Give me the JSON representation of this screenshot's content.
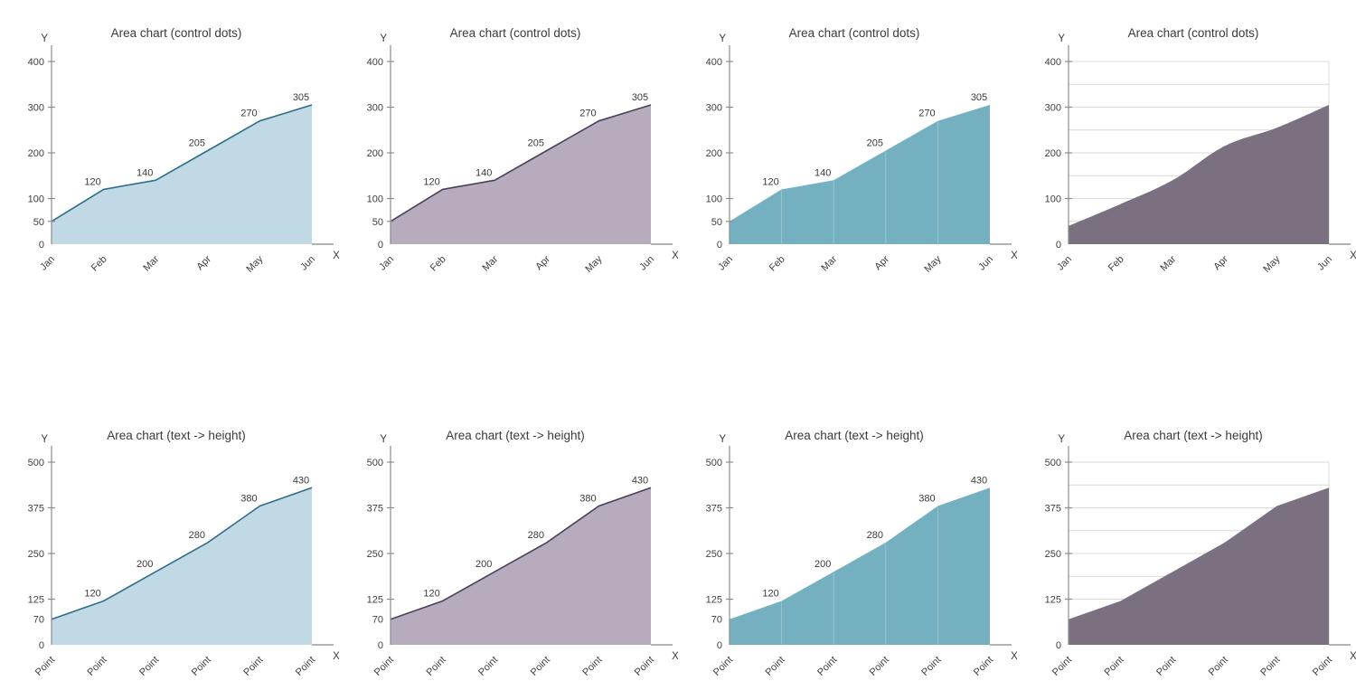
{
  "palette": {
    "axis_color": "#8c8c8c",
    "x_ext_color": "#9a9a9a",
    "text_color": "#3a3a3a",
    "tick_text_color": "#404040",
    "background": "#ffffff"
  },
  "chart_data": [
    {
      "type": "area",
      "title": "Area chart (control dots)",
      "y_axis_label": "Y",
      "x_axis_label": "X",
      "x": [
        "Jan",
        "Feb",
        "Mar",
        "Apr",
        "May",
        "Jun"
      ],
      "values": [
        50,
        120,
        140,
        205,
        270,
        305
      ],
      "point_labels": [
        "",
        "120",
        "140",
        "205",
        "270",
        "305"
      ],
      "y_ticks": [
        [
          0,
          "0",
          0
        ],
        [
          50,
          "50",
          1
        ],
        [
          100,
          "100",
          1
        ],
        [
          200,
          "200",
          1
        ],
        [
          300,
          "300",
          1
        ],
        [
          400,
          "400",
          1
        ]
      ],
      "ylim": [
        0,
        430
      ],
      "grid": "none",
      "grid_values": [],
      "grid_color": "",
      "smooth": false,
      "fill": "#c0d9e4",
      "stroke": "#2e6e89",
      "legend": "none"
    },
    {
      "type": "area",
      "title": "Area chart (control dots)",
      "y_axis_label": "Y",
      "x_axis_label": "X",
      "x": [
        "Jan",
        "Feb",
        "Mar",
        "Apr",
        "May",
        "Jun"
      ],
      "values": [
        50,
        120,
        140,
        205,
        270,
        305
      ],
      "point_labels": [
        "",
        "120",
        "140",
        "205",
        "270",
        "305"
      ],
      "y_ticks": [
        [
          0,
          "0",
          0
        ],
        [
          50,
          "50",
          1
        ],
        [
          100,
          "100",
          1
        ],
        [
          200,
          "200",
          1
        ],
        [
          300,
          "300",
          1
        ],
        [
          400,
          "400",
          1
        ]
      ],
      "ylim": [
        0,
        430
      ],
      "grid": "none",
      "grid_values": [],
      "grid_color": "",
      "smooth": false,
      "fill": "#b6acbd",
      "stroke": "#4a4156",
      "legend": "none"
    },
    {
      "type": "area",
      "title": "Area chart (control dots)",
      "y_axis_label": "Y",
      "x_axis_label": "X",
      "x": [
        "Jan",
        "Feb",
        "Mar",
        "Apr",
        "May",
        "Jun"
      ],
      "values": [
        50,
        120,
        140,
        205,
        270,
        305
      ],
      "point_labels": [
        "",
        "120",
        "140",
        "205",
        "270",
        "305"
      ],
      "y_ticks": [
        [
          0,
          "0",
          0
        ],
        [
          50,
          "50",
          1
        ],
        [
          100,
          "100",
          1
        ],
        [
          200,
          "200",
          1
        ],
        [
          300,
          "300",
          1
        ],
        [
          400,
          "400",
          1
        ]
      ],
      "ylim": [
        0,
        430
      ],
      "grid": "vertical",
      "grid_values": [],
      "grid_color": "#9ac6cf",
      "smooth": false,
      "fill": "#74b0bf",
      "stroke": "",
      "legend": "none"
    },
    {
      "type": "area",
      "title": "Area chart (control dots)",
      "y_axis_label": "Y",
      "x_axis_label": "X",
      "x": [
        "Jan",
        "Feb",
        "Mar",
        "Apr",
        "May",
        "Jun"
      ],
      "values": [
        40,
        88,
        140,
        215,
        255,
        305
      ],
      "point_labels": [
        "",
        "",
        "",
        "",
        "",
        ""
      ],
      "y_ticks": [
        [
          0,
          "0",
          0
        ],
        [
          100,
          "100",
          1
        ],
        [
          200,
          "200",
          1
        ],
        [
          300,
          "300",
          1
        ],
        [
          400,
          "400",
          1
        ]
      ],
      "ylim": [
        0,
        430
      ],
      "grid": "horizontal",
      "grid_values": [
        50,
        100,
        150,
        200,
        250,
        300,
        350,
        400
      ],
      "grid_color": "#d9d9d9",
      "smooth": true,
      "fill": "#7a7080",
      "stroke": "",
      "legend": "none"
    },
    {
      "type": "area",
      "title": "Area chart (text -> height)",
      "y_axis_label": "Y",
      "x_axis_label": "X",
      "x": [
        "Point",
        "Point",
        "Point",
        "Point",
        "Point",
        "Point"
      ],
      "values": [
        70,
        120,
        200,
        280,
        380,
        430
      ],
      "point_labels": [
        "",
        "120",
        "200",
        "280",
        "380",
        "430"
      ],
      "y_ticks": [
        [
          0,
          "0",
          0
        ],
        [
          70,
          "70",
          0
        ],
        [
          125,
          "125",
          1
        ],
        [
          250,
          "250",
          1
        ],
        [
          375,
          "375",
          1
        ],
        [
          500,
          "500",
          1
        ]
      ],
      "ylim": [
        0,
        540
      ],
      "grid": "none",
      "grid_values": [],
      "grid_color": "",
      "smooth": false,
      "fill": "#c0d9e4",
      "stroke": "#2e6e89",
      "legend": "none"
    },
    {
      "type": "area",
      "title": "Area chart (text -> height)",
      "y_axis_label": "Y",
      "x_axis_label": "X",
      "x": [
        "Point",
        "Point",
        "Point",
        "Point",
        "Point",
        "Point"
      ],
      "values": [
        70,
        120,
        200,
        280,
        380,
        430
      ],
      "point_labels": [
        "",
        "120",
        "200",
        "280",
        "380",
        "430"
      ],
      "y_ticks": [
        [
          0,
          "0",
          0
        ],
        [
          70,
          "70",
          0
        ],
        [
          125,
          "125",
          1
        ],
        [
          250,
          "250",
          1
        ],
        [
          375,
          "375",
          1
        ],
        [
          500,
          "500",
          1
        ]
      ],
      "ylim": [
        0,
        540
      ],
      "grid": "none",
      "grid_values": [],
      "grid_color": "",
      "smooth": false,
      "fill": "#b6acbd",
      "stroke": "#4a4156",
      "legend": "none"
    },
    {
      "type": "area",
      "title": "Area chart (text -> height)",
      "y_axis_label": "Y",
      "x_axis_label": "X",
      "x": [
        "Point",
        "Point",
        "Point",
        "Point",
        "Point",
        "Point"
      ],
      "values": [
        70,
        120,
        200,
        280,
        380,
        430
      ],
      "point_labels": [
        "",
        "120",
        "200",
        "280",
        "380",
        "430"
      ],
      "y_ticks": [
        [
          0,
          "0",
          0
        ],
        [
          70,
          "70",
          0
        ],
        [
          125,
          "125",
          1
        ],
        [
          250,
          "250",
          1
        ],
        [
          375,
          "375",
          1
        ],
        [
          500,
          "500",
          1
        ]
      ],
      "ylim": [
        0,
        540
      ],
      "grid": "vertical",
      "grid_values": [],
      "grid_color": "#9ac6cf",
      "smooth": false,
      "fill": "#74b0bf",
      "stroke": "",
      "legend": "none"
    },
    {
      "type": "area",
      "title": "Area chart (text -> height)",
      "y_axis_label": "Y",
      "x_axis_label": "X",
      "x": [
        "Point",
        "Point",
        "Point",
        "Point",
        "Point",
        "Point"
      ],
      "values": [
        70,
        120,
        200,
        280,
        380,
        430
      ],
      "point_labels": [
        "",
        "",
        "",
        "",
        "",
        ""
      ],
      "y_ticks": [
        [
          0,
          "0",
          0
        ],
        [
          125,
          "125",
          1
        ],
        [
          250,
          "250",
          1
        ],
        [
          375,
          "375",
          1
        ],
        [
          500,
          "500",
          1
        ]
      ],
      "ylim": [
        0,
        540
      ],
      "grid": "horizontal",
      "grid_values": [
        62.5,
        125,
        187.5,
        250,
        312.5,
        375,
        437.5,
        500
      ],
      "grid_color": "#d9d9d9",
      "smooth": false,
      "fill": "#7a7080",
      "stroke": "",
      "legend": "none"
    }
  ]
}
